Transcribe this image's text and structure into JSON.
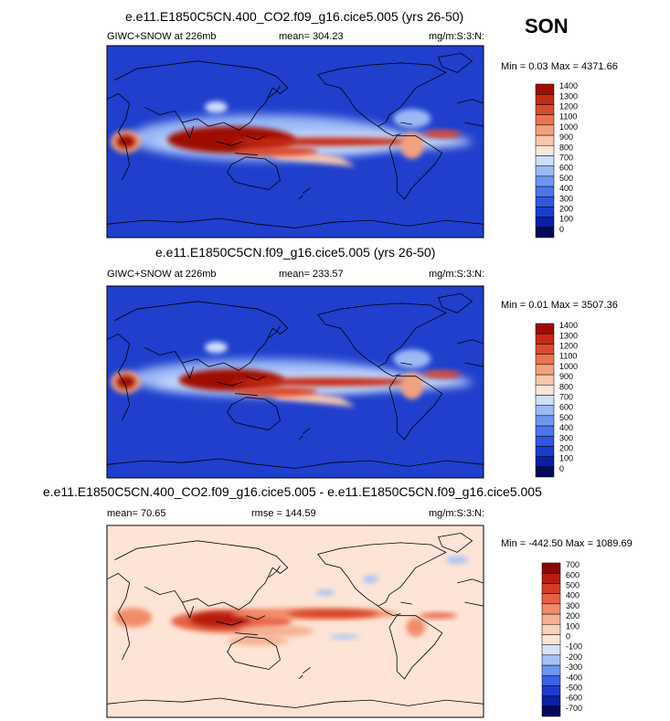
{
  "season": "SON",
  "panels": [
    {
      "title": "e.e11.E1850C5CN.400_CO2.f09_g16.cice5.005 (yrs 26-50)",
      "left_label": "GIWC+SNOW at 226mb",
      "center_label": "mean= 304.23",
      "units": "mg/m:S:3:N:",
      "minmax": "Min =   0.03 Max = 4371.66",
      "levels": [
        "0",
        "100",
        "200",
        "300",
        "400",
        "500",
        "600",
        "700",
        "800",
        "900",
        "1000",
        "1100",
        "1200",
        "1300",
        "1400"
      ]
    },
    {
      "title": "e.e11.E1850C5CN.f09_g16.cice5.005 (yrs 26-50)",
      "left_label": "GIWC+SNOW at 226mb",
      "center_label": "mean= 233.57",
      "units": "mg/m:S:3:N:",
      "minmax": "Min =   0.01 Max = 3507.36",
      "levels": [
        "0",
        "100",
        "200",
        "300",
        "400",
        "500",
        "600",
        "700",
        "800",
        "900",
        "1000",
        "1100",
        "1200",
        "1300",
        "1400"
      ]
    },
    {
      "title": "e.e11.E1850C5CN.400_CO2.f09_g16.cice5.005 - e.e11.E1850C5CN.f09_g16.cice5.005",
      "left_label": "mean=  70.65",
      "center_label": "rmse = 144.59",
      "units": "mg/m:S:3:N:",
      "minmax": "Min = -442.50 Max = 1089.69",
      "levels": [
        "-700",
        "-600",
        "-500",
        "-400",
        "-300",
        "-200",
        "-100",
        "0",
        "100",
        "200",
        "300",
        "400",
        "500",
        "600",
        "700"
      ]
    }
  ],
  "colors": {
    "abs_scale": [
      "#02085a",
      "#0a1fa3",
      "#1c3ccc",
      "#2f57e0",
      "#4a75ec",
      "#6f95f3",
      "#9bb8f7",
      "#cfdefa",
      "#fbe6dc",
      "#f7c6ad",
      "#f2a17f",
      "#ea7452",
      "#db4a2d",
      "#c42a17",
      "#9e0c06"
    ],
    "diff_scale": [
      "#02085a",
      "#0a1fa3",
      "#1c3ccc",
      "#3a62e4",
      "#6f95f3",
      "#a7c1f7",
      "#d6e3fb",
      "#fde4d6",
      "#fbd0b8",
      "#f6b093",
      "#f08c6b",
      "#e66245",
      "#d43d25",
      "#b51e10",
      "#8c0806"
    ],
    "ocean_abs": "#1f3fcc",
    "ocean_diff": "#fde4d6"
  },
  "chart_data": [
    {
      "type": "heatmap",
      "title": "e.e11.E1850C5CN.400_CO2.f09_g16.cice5.005 (yrs 26-50)",
      "variable": "GIWC+SNOW at 226mb",
      "mean": 304.23,
      "min": 0.03,
      "max": 4371.66,
      "contour_levels": [
        0,
        100,
        200,
        300,
        400,
        500,
        600,
        700,
        800,
        900,
        1000,
        1100,
        1200,
        1300,
        1400
      ],
      "projection": "global lat-lon, centered on Pacific"
    },
    {
      "type": "heatmap",
      "title": "e.e11.E1850C5CN.f09_g16.cice5.005 (yrs 26-50)",
      "variable": "GIWC+SNOW at 226mb",
      "mean": 233.57,
      "min": 0.01,
      "max": 3507.36,
      "contour_levels": [
        0,
        100,
        200,
        300,
        400,
        500,
        600,
        700,
        800,
        900,
        1000,
        1100,
        1200,
        1300,
        1400
      ],
      "projection": "global lat-lon, centered on Pacific"
    },
    {
      "type": "heatmap",
      "title": "e.e11.E1850C5CN.400_CO2.f09_g16.cice5.005 - e.e11.E1850C5CN.f09_g16.cice5.005",
      "mean": 70.65,
      "rmse": 144.59,
      "min": -442.5,
      "max": 1089.69,
      "contour_levels": [
        -700,
        -600,
        -500,
        -400,
        -300,
        -200,
        -100,
        0,
        100,
        200,
        300,
        400,
        500,
        600,
        700
      ],
      "projection": "global lat-lon, centered on Pacific"
    }
  ]
}
